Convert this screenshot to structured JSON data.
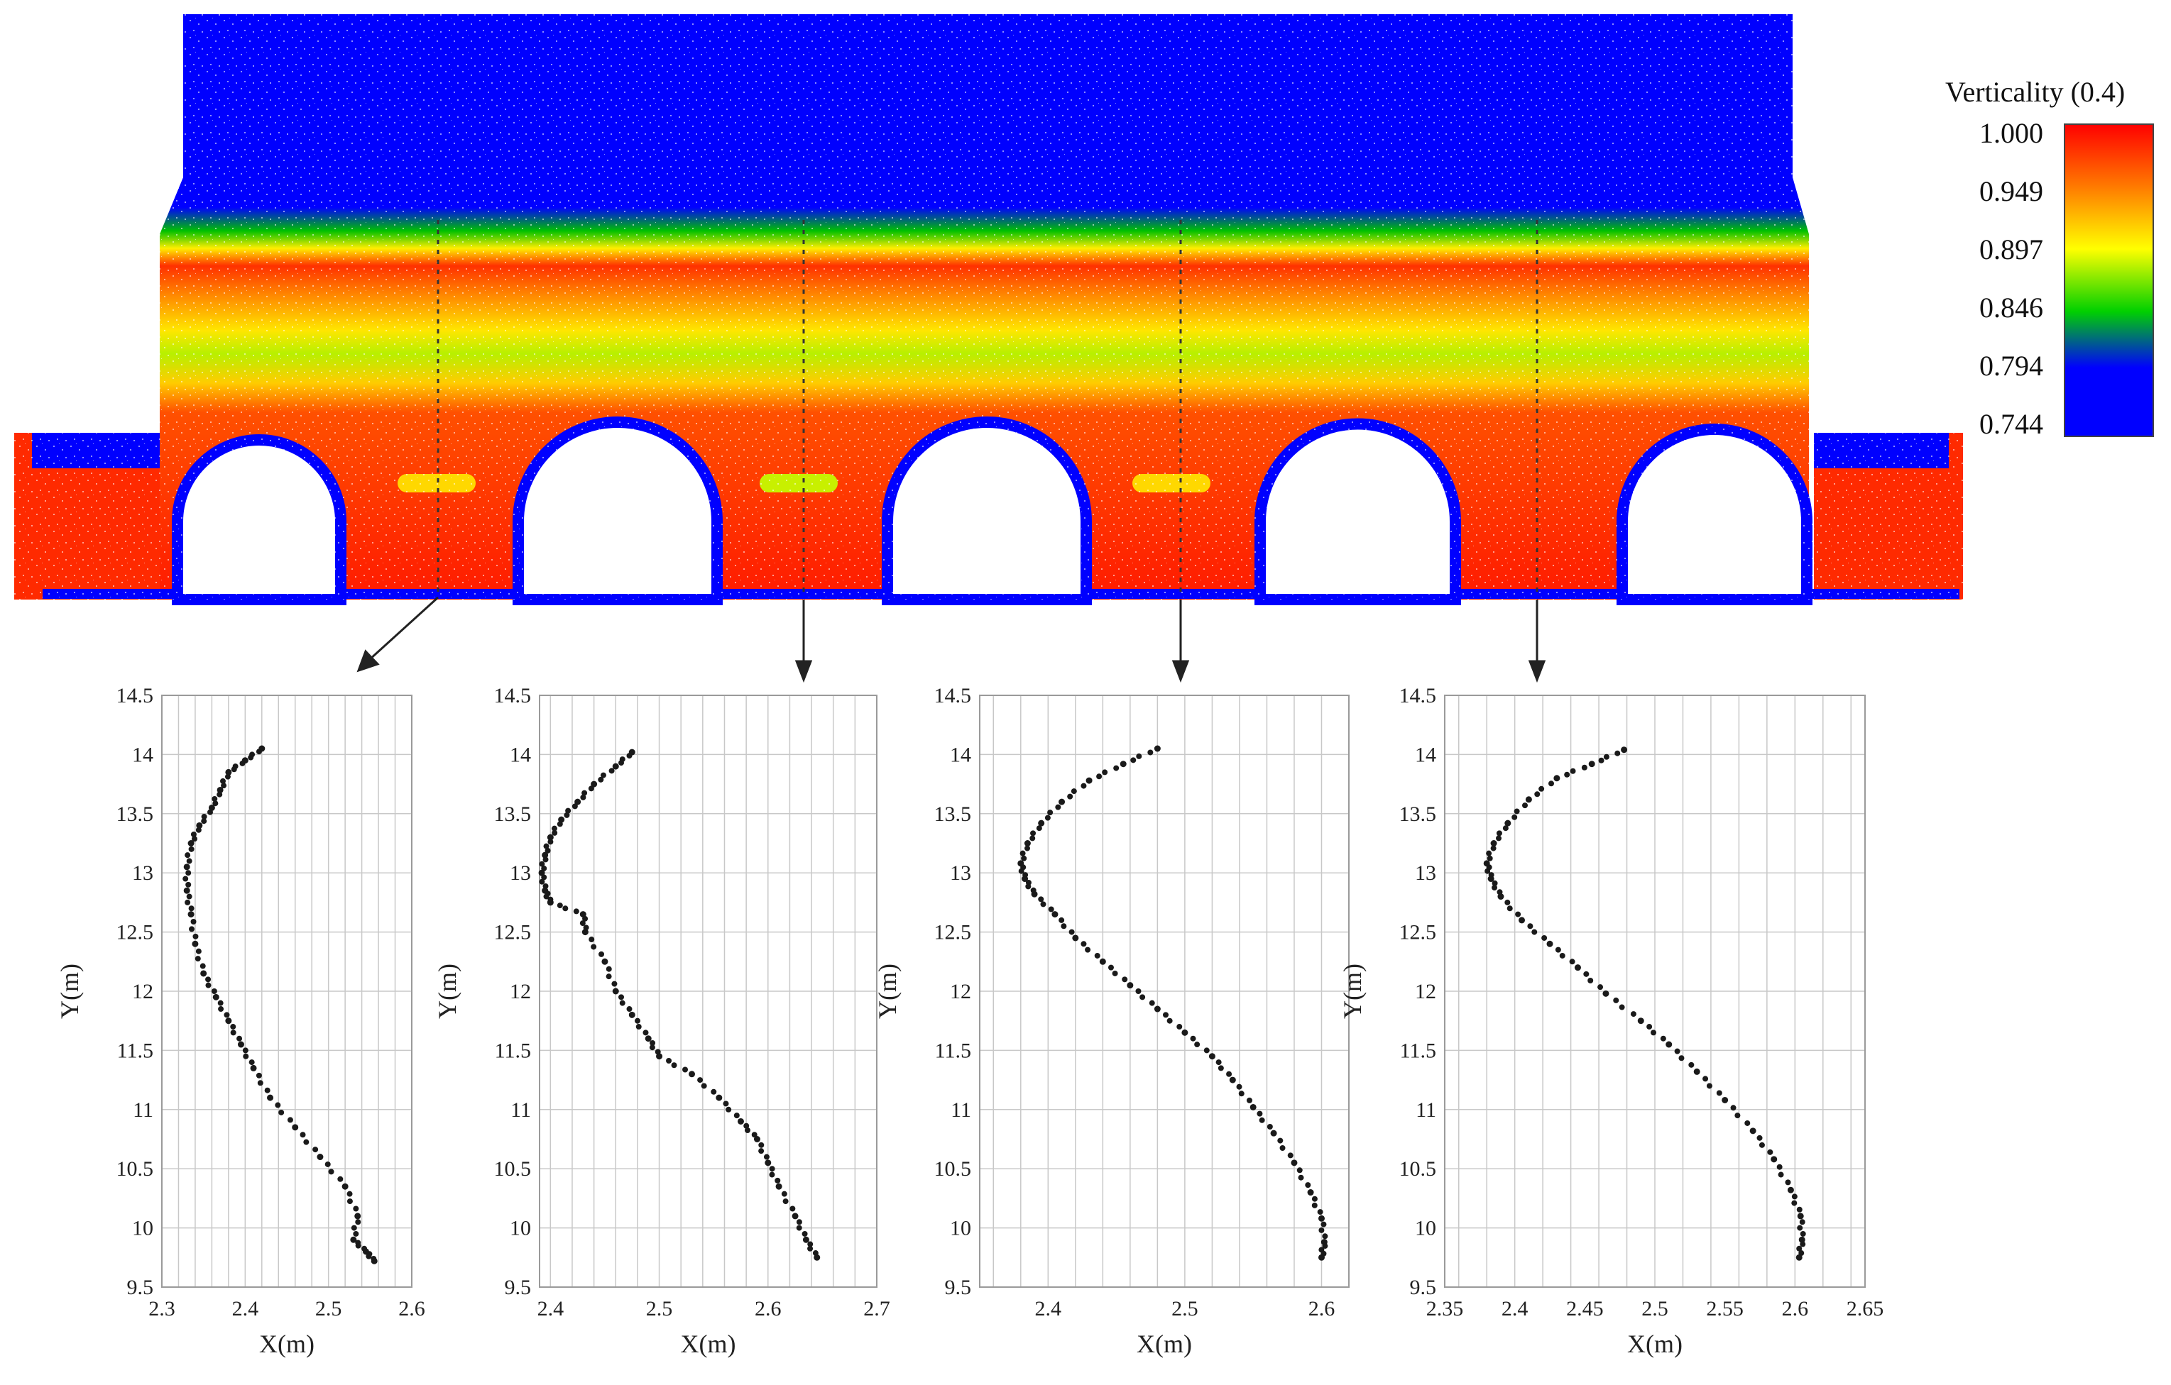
{
  "colorbar": {
    "title": "Verticality (0.4)",
    "ticks": [
      "1.000",
      "0.949",
      "0.897",
      "0.846",
      "0.794",
      "0.744"
    ],
    "colors": [
      "#ff0000",
      "#ff7a00",
      "#ffff00",
      "#00d000",
      "#0000ff"
    ]
  },
  "chart_data": [
    {
      "type": "scatter",
      "xlabel": "X(m)",
      "ylabel": "Y(m)",
      "xlim": [
        2.3,
        2.6
      ],
      "ylim": [
        9.5,
        14.5
      ],
      "xticks": [
        "2.3",
        "2.4",
        "2.5",
        "2.6"
      ],
      "yticks": [
        "9.5",
        "10",
        "10.5",
        "11",
        "11.5",
        "12",
        "12.5",
        "13",
        "13.5",
        "14",
        "14.5"
      ],
      "grid": true,
      "x": [
        2.42,
        2.4,
        2.38,
        2.37,
        2.36,
        2.345,
        2.335,
        2.33,
        2.33,
        2.335,
        2.34,
        2.35,
        2.365,
        2.38,
        2.395,
        2.41,
        2.43,
        2.46,
        2.49,
        2.52,
        2.535,
        2.53,
        2.545,
        2.555
      ],
      "y": [
        14.05,
        13.95,
        13.85,
        13.7,
        13.55,
        13.4,
        13.25,
        13.05,
        12.85,
        12.65,
        12.4,
        12.15,
        11.95,
        11.75,
        11.55,
        11.35,
        11.1,
        10.85,
        10.6,
        10.35,
        10.1,
        9.9,
        9.8,
        9.72
      ]
    },
    {
      "type": "scatter",
      "xlabel": "X(m)",
      "ylabel": "Y(m)",
      "xlim": [
        2.39,
        2.7
      ],
      "ylim": [
        9.5,
        14.5
      ],
      "xticks": [
        "2.4",
        "2.5",
        "2.6",
        "2.7"
      ],
      "yticks": [
        "9.5",
        "10",
        "10.5",
        "11",
        "11.5",
        "12",
        "12.5",
        "13",
        "13.5",
        "14",
        "14.5"
      ],
      "grid": true,
      "x": [
        2.475,
        2.46,
        2.44,
        2.425,
        2.41,
        2.4,
        2.395,
        2.392,
        2.395,
        2.4,
        2.43,
        2.432,
        2.45,
        2.46,
        2.475,
        2.49,
        2.5,
        2.53,
        2.555,
        2.575,
        2.59,
        2.6,
        2.61,
        2.625,
        2.635,
        2.645
      ],
      "y": [
        14.02,
        13.9,
        13.75,
        13.6,
        13.45,
        13.3,
        13.15,
        13.0,
        12.85,
        12.75,
        12.65,
        12.5,
        12.25,
        12.0,
        11.8,
        11.6,
        11.45,
        11.3,
        11.1,
        10.9,
        10.75,
        10.55,
        10.35,
        10.1,
        9.9,
        9.75
      ]
    },
    {
      "type": "scatter",
      "xlabel": "X(m)",
      "ylabel": "Y(m)",
      "xlim": [
        2.35,
        2.62
      ],
      "ylim": [
        9.5,
        14.5
      ],
      "xticks": [
        "2.4",
        "2.5",
        "2.6"
      ],
      "yticks": [
        "9.5",
        "10",
        "10.5",
        "11",
        "11.5",
        "12",
        "12.5",
        "13",
        "13.5",
        "14",
        "14.5"
      ],
      "grid": true,
      "x": [
        2.48,
        2.455,
        2.43,
        2.41,
        2.395,
        2.385,
        2.38,
        2.383,
        2.39,
        2.405,
        2.42,
        2.44,
        2.46,
        2.48,
        2.5,
        2.52,
        2.535,
        2.55,
        2.565,
        2.58,
        2.592,
        2.6,
        2.602,
        2.6
      ],
      "y": [
        14.05,
        13.92,
        13.78,
        13.6,
        13.42,
        13.25,
        13.08,
        12.95,
        12.82,
        12.65,
        12.45,
        12.25,
        12.05,
        11.85,
        11.65,
        11.45,
        11.25,
        11.02,
        10.8,
        10.55,
        10.3,
        10.08,
        9.88,
        9.75
      ]
    },
    {
      "type": "scatter",
      "xlabel": "X(m)",
      "ylabel": "Y(m)",
      "xlim": [
        2.35,
        2.65
      ],
      "ylim": [
        9.5,
        14.5
      ],
      "xticks": [
        "2.35",
        "2.4",
        "2.45",
        "2.5",
        "2.55",
        "2.6",
        "2.65"
      ],
      "yticks": [
        "9.5",
        "10",
        "10.5",
        "11",
        "11.5",
        "12",
        "12.5",
        "13",
        "13.5",
        "14",
        "14.5"
      ],
      "grid": true,
      "x": [
        2.478,
        2.455,
        2.43,
        2.41,
        2.395,
        2.385,
        2.38,
        2.383,
        2.39,
        2.405,
        2.425,
        2.445,
        2.465,
        2.49,
        2.51,
        2.53,
        2.55,
        2.57,
        2.585,
        2.597,
        2.604,
        2.605,
        2.603
      ],
      "y": [
        14.04,
        13.92,
        13.8,
        13.62,
        13.42,
        13.25,
        13.08,
        12.95,
        12.8,
        12.6,
        12.4,
        12.2,
        11.98,
        11.75,
        11.55,
        11.32,
        11.08,
        10.82,
        10.58,
        10.32,
        10.1,
        9.9,
        9.75
      ]
    }
  ]
}
